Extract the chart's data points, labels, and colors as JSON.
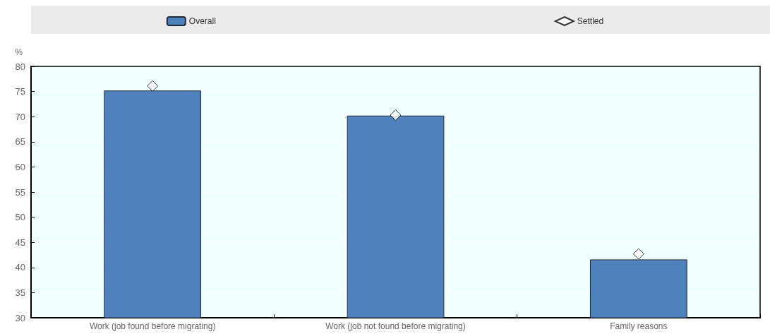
{
  "chart_data": {
    "type": "bar",
    "ylabel": "%",
    "categories": [
      "Work (job found before migrating)",
      "Work (job not found before migrating)",
      "Family reasons"
    ],
    "series": [
      {
        "name": "Overall",
        "color": "#4f81bd",
        "values": [
          75.2,
          70.2,
          41.6
        ]
      },
      {
        "name": "Settled",
        "type": "scatter",
        "color": "#ffffff",
        "marker": "diamond",
        "values": [
          76.1,
          70.3,
          42.7
        ]
      }
    ],
    "ylim": [
      30,
      80
    ],
    "yticks": [
      30,
      35,
      40,
      45,
      50,
      55,
      60,
      65,
      70,
      75,
      80
    ],
    "grid": "y",
    "legend": "top"
  }
}
